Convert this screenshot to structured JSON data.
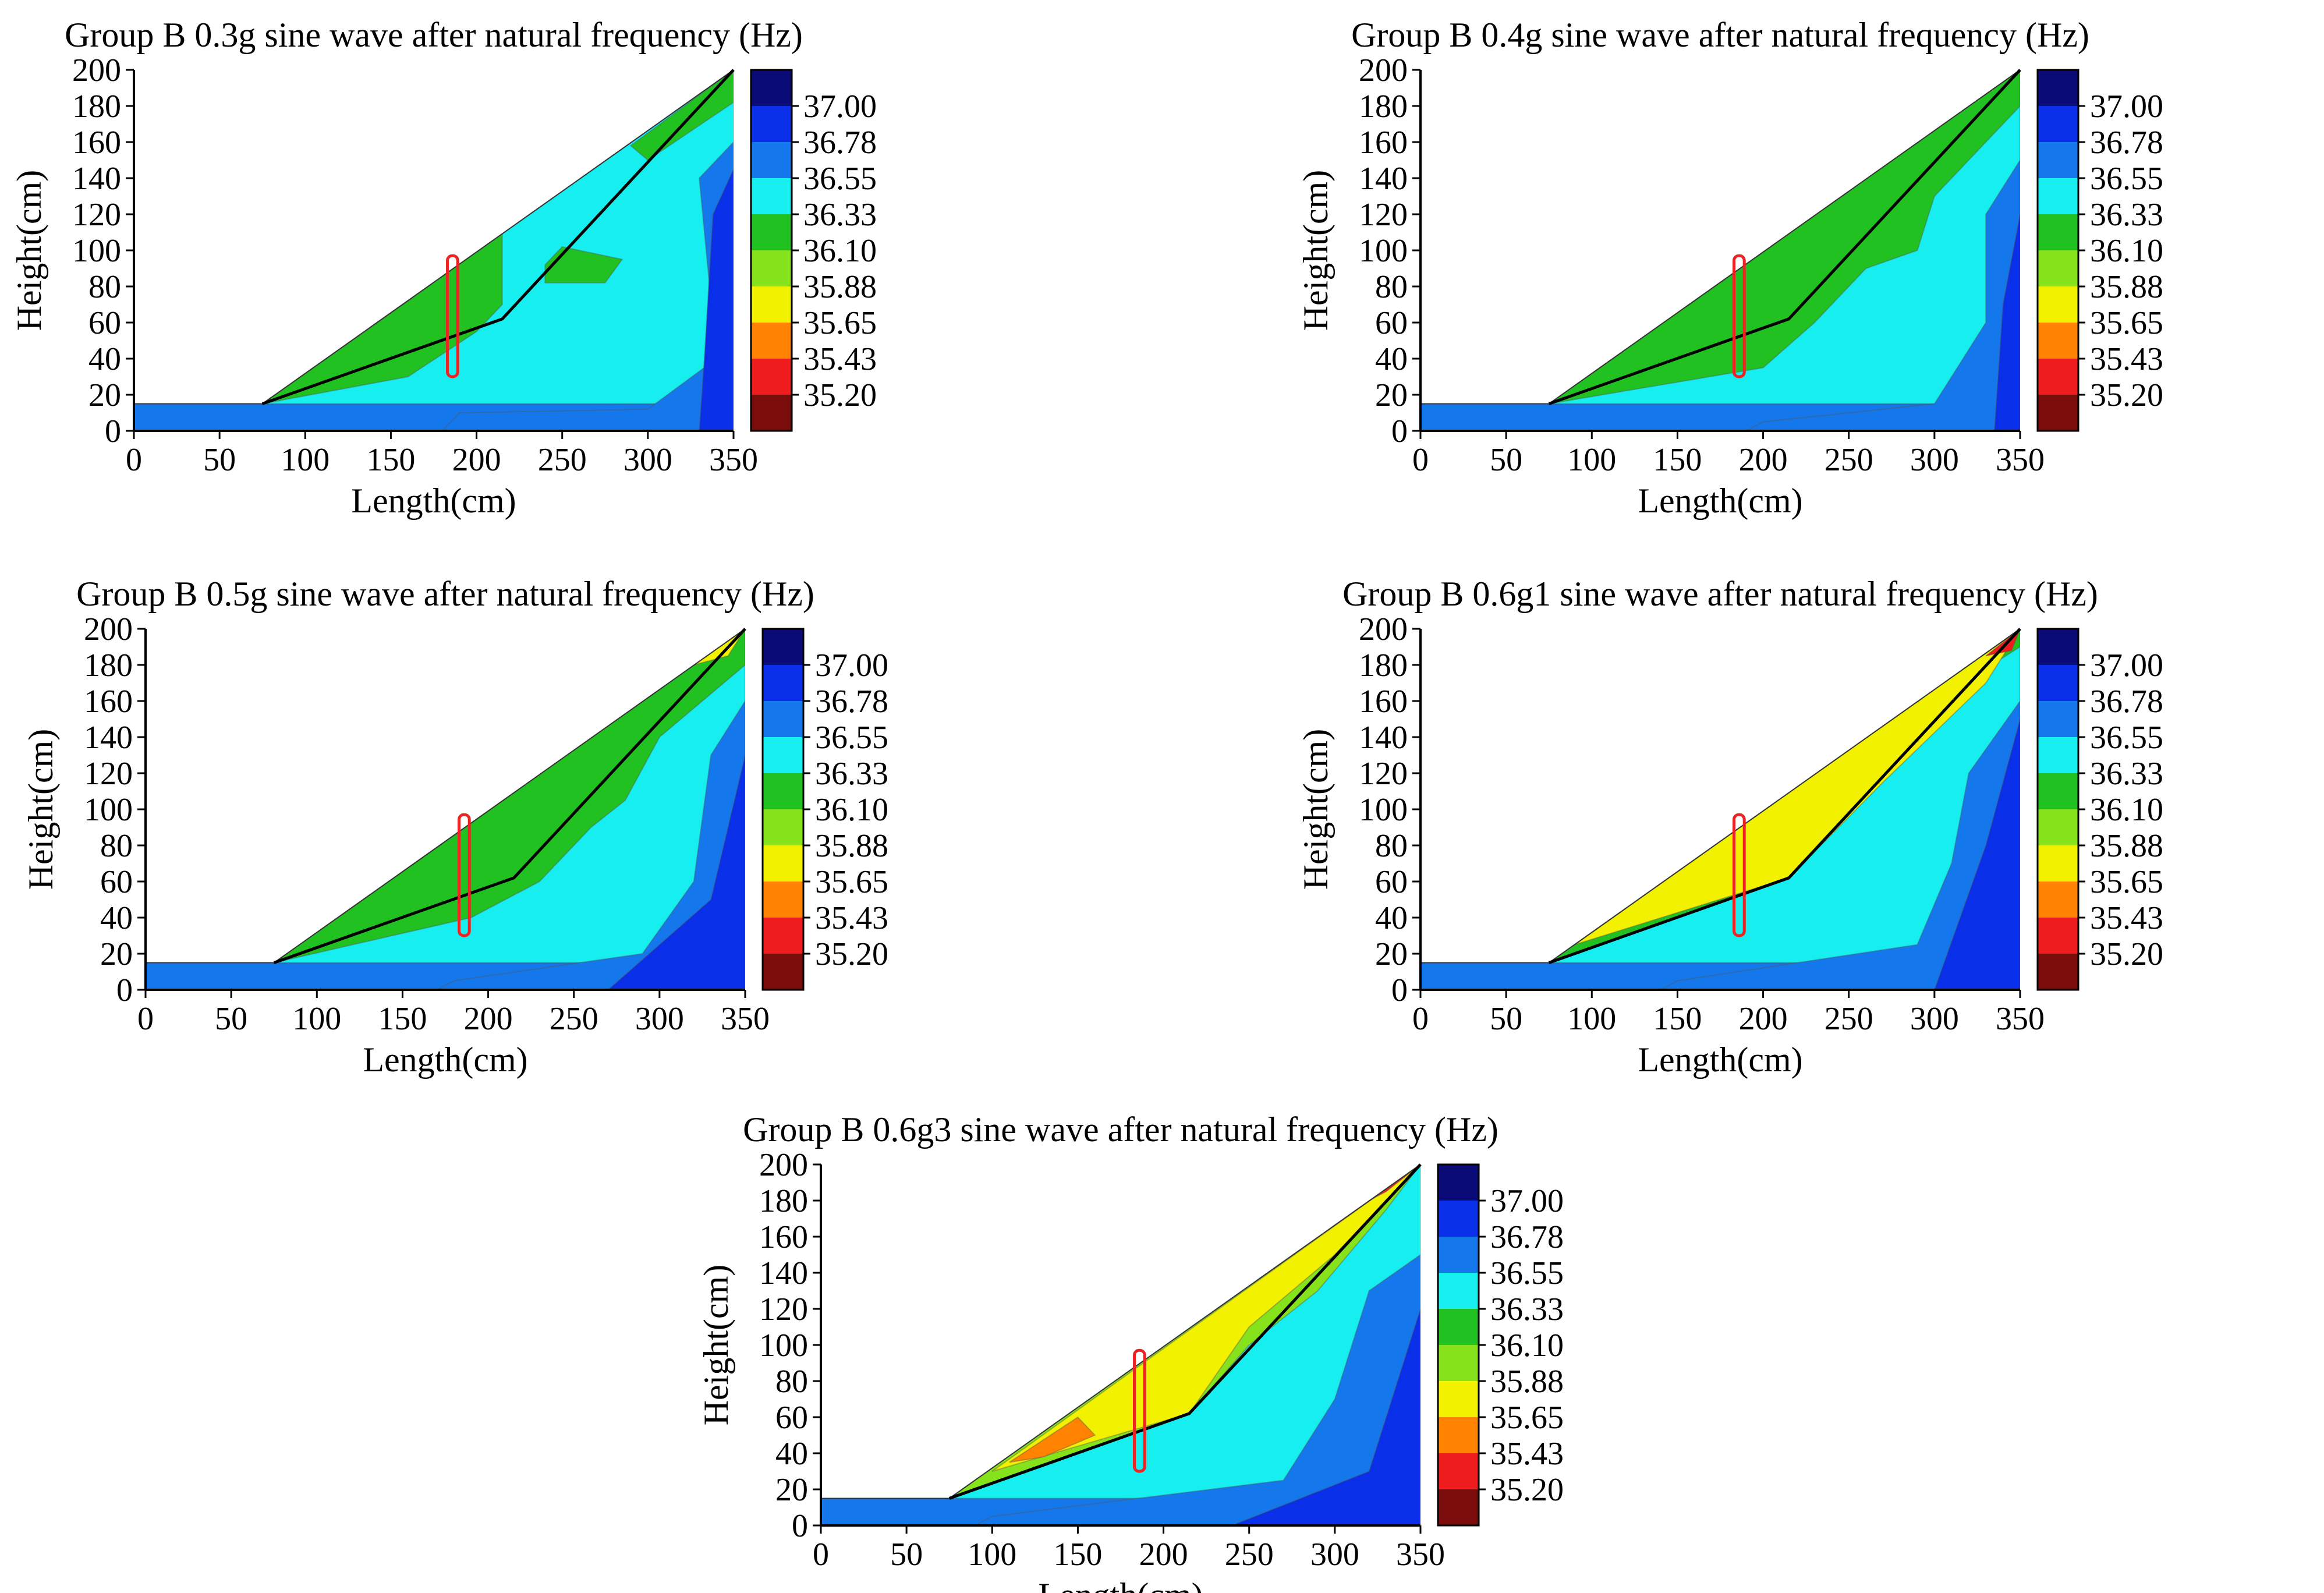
{
  "figure_title": "",
  "colorbar": {
    "levels": [
      "37.00",
      "36.78",
      "36.55",
      "36.33",
      "36.10",
      "35.88",
      "35.65",
      "35.43",
      "35.20"
    ],
    "colors": [
      "#0b0b78",
      "#0a2fe8",
      "#1478ec",
      "#16eef0",
      "#21c121",
      "#86e21a",
      "#f2f200",
      "#ff8200",
      "#ee1c1c",
      "#7a0c0c"
    ]
  },
  "chart_data": [
    {
      "type": "contour",
      "title": "Group B 0.3g sine wave after natural frequency (Hz)",
      "xlabel": "Length(cm)",
      "ylabel": "Height(cm)",
      "xlim": [
        0,
        350
      ],
      "ylim": [
        0,
        200
      ],
      "xticks": [
        "0",
        "50",
        "100",
        "150",
        "200",
        "250",
        "300",
        "350"
      ],
      "yticks": [
        "0",
        "20",
        "40",
        "60",
        "80",
        "100",
        "120",
        "140",
        "160",
        "180",
        "200"
      ],
      "slope_profile": [
        [
          0,
          15
        ],
        [
          75,
          15
        ],
        [
          350,
          200
        ],
        [
          350,
          0
        ],
        [
          0,
          0
        ]
      ],
      "slip_line": [
        [
          75,
          15
        ],
        [
          215,
          62
        ],
        [
          350,
          200
        ]
      ],
      "monitor_box": {
        "x": [
          183,
          189
        ],
        "y": [
          30,
          97
        ]
      },
      "regions": [
        {
          "level": 2,
          "poly": [
            [
              0,
              0
            ],
            [
              350,
              0
            ],
            [
              350,
              15
            ],
            [
              0,
              15
            ]
          ]
        },
        {
          "level": 3,
          "poly": [
            [
              75,
              15
            ],
            [
              350,
              15
            ],
            [
              350,
              200
            ],
            [
              75,
              15
            ]
          ]
        },
        {
          "level": 4,
          "poly": [
            [
              75,
              15
            ],
            [
              160,
              30
            ],
            [
              200,
              55
            ],
            [
              215,
              70
            ],
            [
              215,
              110
            ],
            [
              160,
              72
            ],
            [
              75,
              15
            ]
          ]
        },
        {
          "level": 4,
          "poly": [
            [
              240,
              82
            ],
            [
              275,
              82
            ],
            [
              285,
              95
            ],
            [
              250,
              102
            ],
            [
              240,
              92
            ]
          ]
        },
        {
          "level": 4,
          "poly": [
            [
              300,
              150
            ],
            [
              350,
              182
            ],
            [
              350,
              200
            ],
            [
              290,
              158
            ]
          ]
        },
        {
          "level": 2,
          "poly": [
            [
              190,
              10
            ],
            [
              300,
              12
            ],
            [
              340,
              40
            ],
            [
              330,
              140
            ],
            [
              350,
              160
            ],
            [
              350,
              0
            ],
            [
              180,
              0
            ]
          ]
        },
        {
          "level": 1,
          "poly": [
            [
              330,
              0
            ],
            [
              350,
              0
            ],
            [
              350,
              145
            ],
            [
              338,
              120
            ],
            [
              333,
              40
            ]
          ]
        }
      ]
    },
    {
      "type": "contour",
      "title": "Group B 0.4g sine wave after natural frequency (Hz)",
      "xlabel": "Length(cm)",
      "ylabel": "Height(cm)",
      "xlim": [
        0,
        350
      ],
      "ylim": [
        0,
        200
      ],
      "xticks": [
        "0",
        "50",
        "100",
        "150",
        "200",
        "250",
        "300",
        "350"
      ],
      "yticks": [
        "0",
        "20",
        "40",
        "60",
        "80",
        "100",
        "120",
        "140",
        "160",
        "180",
        "200"
      ],
      "slope_profile": [
        [
          0,
          15
        ],
        [
          75,
          15
        ],
        [
          350,
          200
        ],
        [
          350,
          0
        ],
        [
          0,
          0
        ]
      ],
      "slip_line": [
        [
          75,
          15
        ],
        [
          215,
          62
        ],
        [
          350,
          200
        ]
      ],
      "monitor_box": {
        "x": [
          183,
          189
        ],
        "y": [
          30,
          97
        ]
      },
      "regions": [
        {
          "level": 2,
          "poly": [
            [
              0,
              0
            ],
            [
              350,
              0
            ],
            [
              350,
              15
            ],
            [
              0,
              15
            ]
          ]
        },
        {
          "level": 3,
          "poly": [
            [
              75,
              15
            ],
            [
              350,
              15
            ],
            [
              350,
              200
            ],
            [
              75,
              15
            ]
          ]
        },
        {
          "level": 4,
          "poly": [
            [
              75,
              15
            ],
            [
              200,
              35
            ],
            [
              230,
              60
            ],
            [
              260,
              90
            ],
            [
              290,
              100
            ],
            [
              300,
              130
            ],
            [
              350,
              180
            ],
            [
              350,
              200
            ]
          ]
        },
        {
          "level": 2,
          "poly": [
            [
              200,
              5
            ],
            [
              300,
              15
            ],
            [
              330,
              60
            ],
            [
              330,
              120
            ],
            [
              350,
              150
            ],
            [
              350,
              0
            ],
            [
              190,
              0
            ]
          ]
        },
        {
          "level": 1,
          "poly": [
            [
              335,
              0
            ],
            [
              350,
              0
            ],
            [
              350,
              120
            ],
            [
              340,
              70
            ]
          ]
        }
      ]
    },
    {
      "type": "contour",
      "title": "Group B 0.5g sine wave after natural frequency (Hz)",
      "xlabel": "Length(cm)",
      "ylabel": "Height(cm)",
      "xlim": [
        0,
        350
      ],
      "ylim": [
        0,
        200
      ],
      "xticks": [
        "0",
        "50",
        "100",
        "150",
        "200",
        "250",
        "300",
        "350"
      ],
      "yticks": [
        "0",
        "20",
        "40",
        "60",
        "80",
        "100",
        "120",
        "140",
        "160",
        "180",
        "200"
      ],
      "slope_profile": [
        [
          0,
          15
        ],
        [
          75,
          15
        ],
        [
          350,
          200
        ],
        [
          350,
          0
        ],
        [
          0,
          0
        ]
      ],
      "slip_line": [
        [
          75,
          15
        ],
        [
          215,
          62
        ],
        [
          350,
          200
        ]
      ],
      "monitor_box": {
        "x": [
          183,
          189
        ],
        "y": [
          30,
          97
        ]
      },
      "regions": [
        {
          "level": 2,
          "poly": [
            [
              0,
              0
            ],
            [
              350,
              0
            ],
            [
              350,
              15
            ],
            [
              0,
              15
            ]
          ]
        },
        {
          "level": 3,
          "poly": [
            [
              75,
              15
            ],
            [
              350,
              15
            ],
            [
              350,
              200
            ],
            [
              75,
              15
            ]
          ]
        },
        {
          "level": 4,
          "poly": [
            [
              75,
              15
            ],
            [
              190,
              40
            ],
            [
              230,
              60
            ],
            [
              260,
              90
            ],
            [
              280,
              105
            ],
            [
              300,
              140
            ],
            [
              350,
              180
            ],
            [
              350,
              200
            ]
          ]
        },
        {
          "level": 2,
          "poly": [
            [
              180,
              5
            ],
            [
              290,
              20
            ],
            [
              320,
              60
            ],
            [
              330,
              130
            ],
            [
              350,
              160
            ],
            [
              350,
              0
            ],
            [
              170,
              0
            ]
          ]
        },
        {
          "level": 1,
          "poly": [
            [
              270,
              0
            ],
            [
              350,
              0
            ],
            [
              350,
              130
            ],
            [
              330,
              50
            ]
          ]
        },
        {
          "level": 6,
          "poly": [
            [
              320,
              180
            ],
            [
              350,
              200
            ],
            [
              340,
              185
            ]
          ]
        }
      ]
    },
    {
      "type": "contour",
      "title": "Group B 0.6g1 sine wave after natural frequency (Hz)",
      "xlabel": "Length(cm)",
      "ylabel": "Height(cm)",
      "xlim": [
        0,
        350
      ],
      "ylim": [
        0,
        200
      ],
      "xticks": [
        "0",
        "50",
        "100",
        "150",
        "200",
        "250",
        "300",
        "350"
      ],
      "yticks": [
        "0",
        "20",
        "40",
        "60",
        "80",
        "100",
        "120",
        "140",
        "160",
        "180",
        "200"
      ],
      "slope_profile": [
        [
          0,
          15
        ],
        [
          75,
          15
        ],
        [
          350,
          200
        ],
        [
          350,
          0
        ],
        [
          0,
          0
        ]
      ],
      "slip_line": [
        [
          75,
          15
        ],
        [
          215,
          62
        ],
        [
          350,
          200
        ]
      ],
      "monitor_box": {
        "x": [
          183,
          189
        ],
        "y": [
          30,
          97
        ]
      },
      "regions": [
        {
          "level": 2,
          "poly": [
            [
              0,
              0
            ],
            [
              350,
              0
            ],
            [
              350,
              15
            ],
            [
              0,
              15
            ]
          ]
        },
        {
          "level": 3,
          "poly": [
            [
              75,
              15
            ],
            [
              350,
              15
            ],
            [
              350,
              200
            ],
            [
              75,
              15
            ]
          ]
        },
        {
          "level": 4,
          "poly": [
            [
              75,
              15
            ],
            [
              215,
              62
            ],
            [
              250,
              100
            ],
            [
              270,
              130
            ],
            [
              300,
              160
            ],
            [
              350,
              190
            ],
            [
              350,
              200
            ]
          ]
        },
        {
          "level": 6,
          "poly": [
            [
              90,
              25
            ],
            [
              215,
              62
            ],
            [
              270,
              115
            ],
            [
              330,
              170
            ],
            [
              350,
              200
            ]
          ]
        },
        {
          "level": 2,
          "poly": [
            [
              150,
              5
            ],
            [
              290,
              25
            ],
            [
              310,
              70
            ],
            [
              320,
              120
            ],
            [
              350,
              160
            ],
            [
              350,
              0
            ],
            [
              140,
              0
            ]
          ]
        },
        {
          "level": 1,
          "poly": [
            [
              300,
              0
            ],
            [
              350,
              0
            ],
            [
              350,
              150
            ],
            [
              330,
              80
            ]
          ]
        },
        {
          "level": 8,
          "poly": [
            [
              330,
              185
            ],
            [
              350,
              200
            ],
            [
              345,
              188
            ]
          ]
        }
      ]
    },
    {
      "type": "contour",
      "title": "Group B 0.6g3 sine wave after natural frequency (Hz)",
      "xlabel": "Length(cm)",
      "ylabel": "Height(cm)",
      "xlim": [
        0,
        350
      ],
      "ylim": [
        0,
        200
      ],
      "xticks": [
        "0",
        "50",
        "100",
        "150",
        "200",
        "250",
        "300",
        "350"
      ],
      "yticks": [
        "0",
        "20",
        "40",
        "60",
        "80",
        "100",
        "120",
        "140",
        "160",
        "180",
        "200"
      ],
      "slope_profile": [
        [
          0,
          15
        ],
        [
          75,
          15
        ],
        [
          350,
          200
        ],
        [
          350,
          0
        ],
        [
          0,
          0
        ]
      ],
      "slip_line": [
        [
          75,
          15
        ],
        [
          215,
          62
        ],
        [
          350,
          200
        ]
      ],
      "monitor_box": {
        "x": [
          183,
          189
        ],
        "y": [
          30,
          97
        ]
      },
      "regions": [
        {
          "level": 2,
          "poly": [
            [
              0,
              0
            ],
            [
              350,
              0
            ],
            [
              350,
              15
            ],
            [
              0,
              15
            ]
          ]
        },
        {
          "level": 3,
          "poly": [
            [
              75,
              15
            ],
            [
              350,
              15
            ],
            [
              350,
              200
            ],
            [
              75,
              15
            ]
          ]
        },
        {
          "level": 5,
          "poly": [
            [
              75,
              15
            ],
            [
              215,
              62
            ],
            [
              250,
              100
            ],
            [
              290,
              130
            ],
            [
              330,
              175
            ],
            [
              350,
              200
            ]
          ]
        },
        {
          "level": 6,
          "poly": [
            [
              100,
              30
            ],
            [
              215,
              62
            ],
            [
              250,
              110
            ],
            [
              300,
              150
            ],
            [
              350,
              200
            ]
          ]
        },
        {
          "level": 8,
          "poly": [
            [
              200,
              120
            ],
            [
              330,
              185
            ],
            [
              350,
              200
            ],
            [
              280,
              170
            ]
          ]
        },
        {
          "level": 7,
          "poly": [
            [
              110,
              35
            ],
            [
              150,
              60
            ],
            [
              160,
              50
            ],
            [
              130,
              38
            ]
          ]
        },
        {
          "level": 2,
          "poly": [
            [
              100,
              5
            ],
            [
              270,
              25
            ],
            [
              300,
              70
            ],
            [
              320,
              130
            ],
            [
              350,
              150
            ],
            [
              350,
              0
            ],
            [
              90,
              0
            ]
          ]
        },
        {
          "level": 1,
          "poly": [
            [
              240,
              0
            ],
            [
              350,
              0
            ],
            [
              350,
              120
            ],
            [
              320,
              30
            ]
          ]
        }
      ]
    }
  ]
}
